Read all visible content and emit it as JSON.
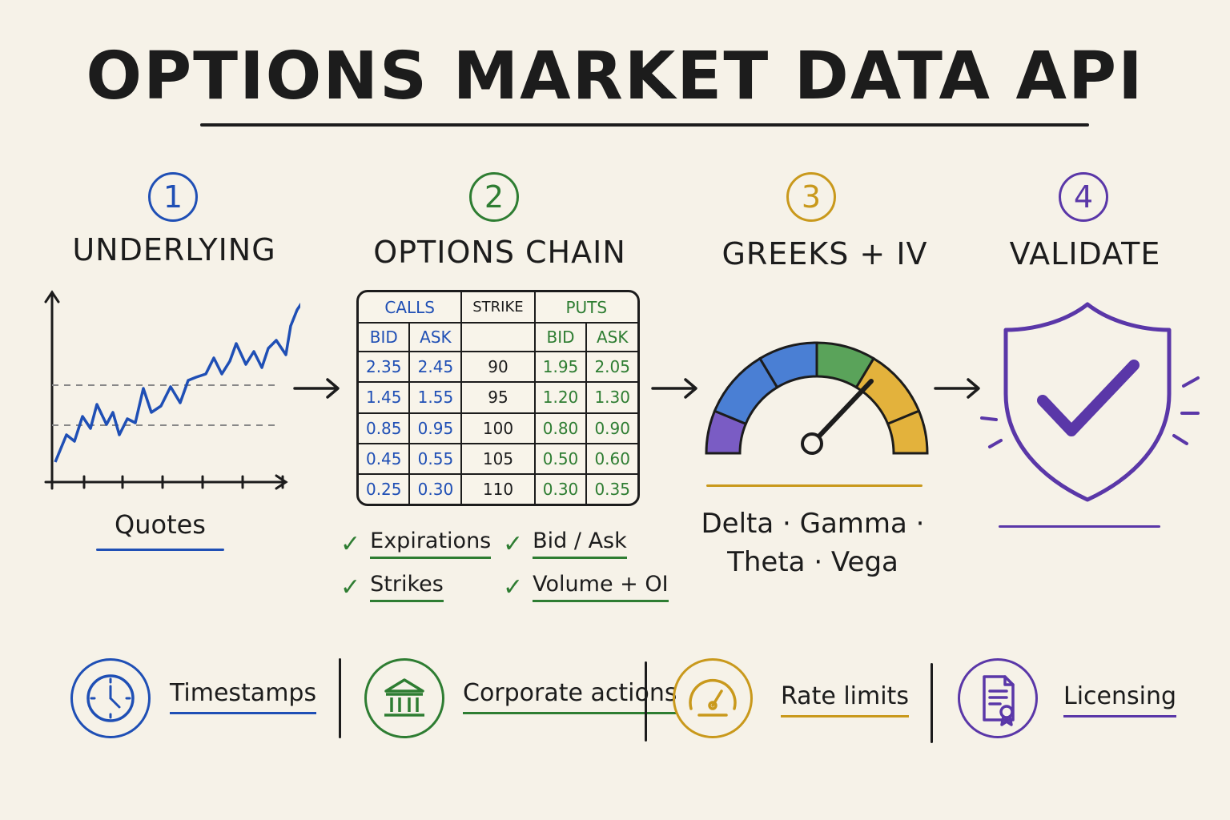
{
  "title": "OPTIONS MARKET DATA API",
  "colors": {
    "blue": "#1f4fb5",
    "green": "#2e7d32",
    "gold": "#c9991c",
    "purple": "#5a37a8",
    "ink": "#1c1c1c",
    "paper": "#f6f2e8"
  },
  "steps": [
    {
      "number": "1",
      "title": "UNDERLYING",
      "caption": "Quotes",
      "icon": "line-chart-icon"
    },
    {
      "number": "2",
      "title": "OPTIONS CHAIN",
      "icon": "options-chain-table"
    },
    {
      "number": "3",
      "title": "GREEKS + IV",
      "icon": "gauge-icon"
    },
    {
      "number": "4",
      "title": "VALIDATE",
      "icon": "shield-check-icon"
    }
  ],
  "chain": {
    "calls_label": "CALLS",
    "strike_label": "STRIKE",
    "puts_label": "PUTS",
    "bid_label": "BID",
    "ask_label": "ASK",
    "rows": [
      {
        "call_bid": "2.35",
        "call_ask": "2.45",
        "strike": "90",
        "put_bid": "1.95",
        "put_ask": "2.05"
      },
      {
        "call_bid": "1.45",
        "call_ask": "1.55",
        "strike": "95",
        "put_bid": "1.20",
        "put_ask": "1.30"
      },
      {
        "call_bid": "0.85",
        "call_ask": "0.95",
        "strike": "100",
        "put_bid": "0.80",
        "put_ask": "0.90"
      },
      {
        "call_bid": "0.45",
        "call_ask": "0.55",
        "strike": "105",
        "put_bid": "0.50",
        "put_ask": "0.60"
      },
      {
        "call_bid": "0.25",
        "call_ask": "0.30",
        "strike": "110",
        "put_bid": "0.30",
        "put_ask": "0.35"
      }
    ]
  },
  "checklist": [
    "Expirations",
    "Bid / Ask",
    "Strikes",
    "Volume + OI"
  ],
  "greeks": {
    "line1": "Delta · Gamma ·",
    "line2": "Theta · Vega"
  },
  "features": [
    {
      "label": "Timestamps",
      "icon": "clock-icon"
    },
    {
      "label": "Corporate actions",
      "icon": "bank-icon"
    },
    {
      "label": "Rate limits",
      "icon": "speedometer-icon"
    },
    {
      "label": "Licensing",
      "icon": "certificate-icon"
    }
  ]
}
